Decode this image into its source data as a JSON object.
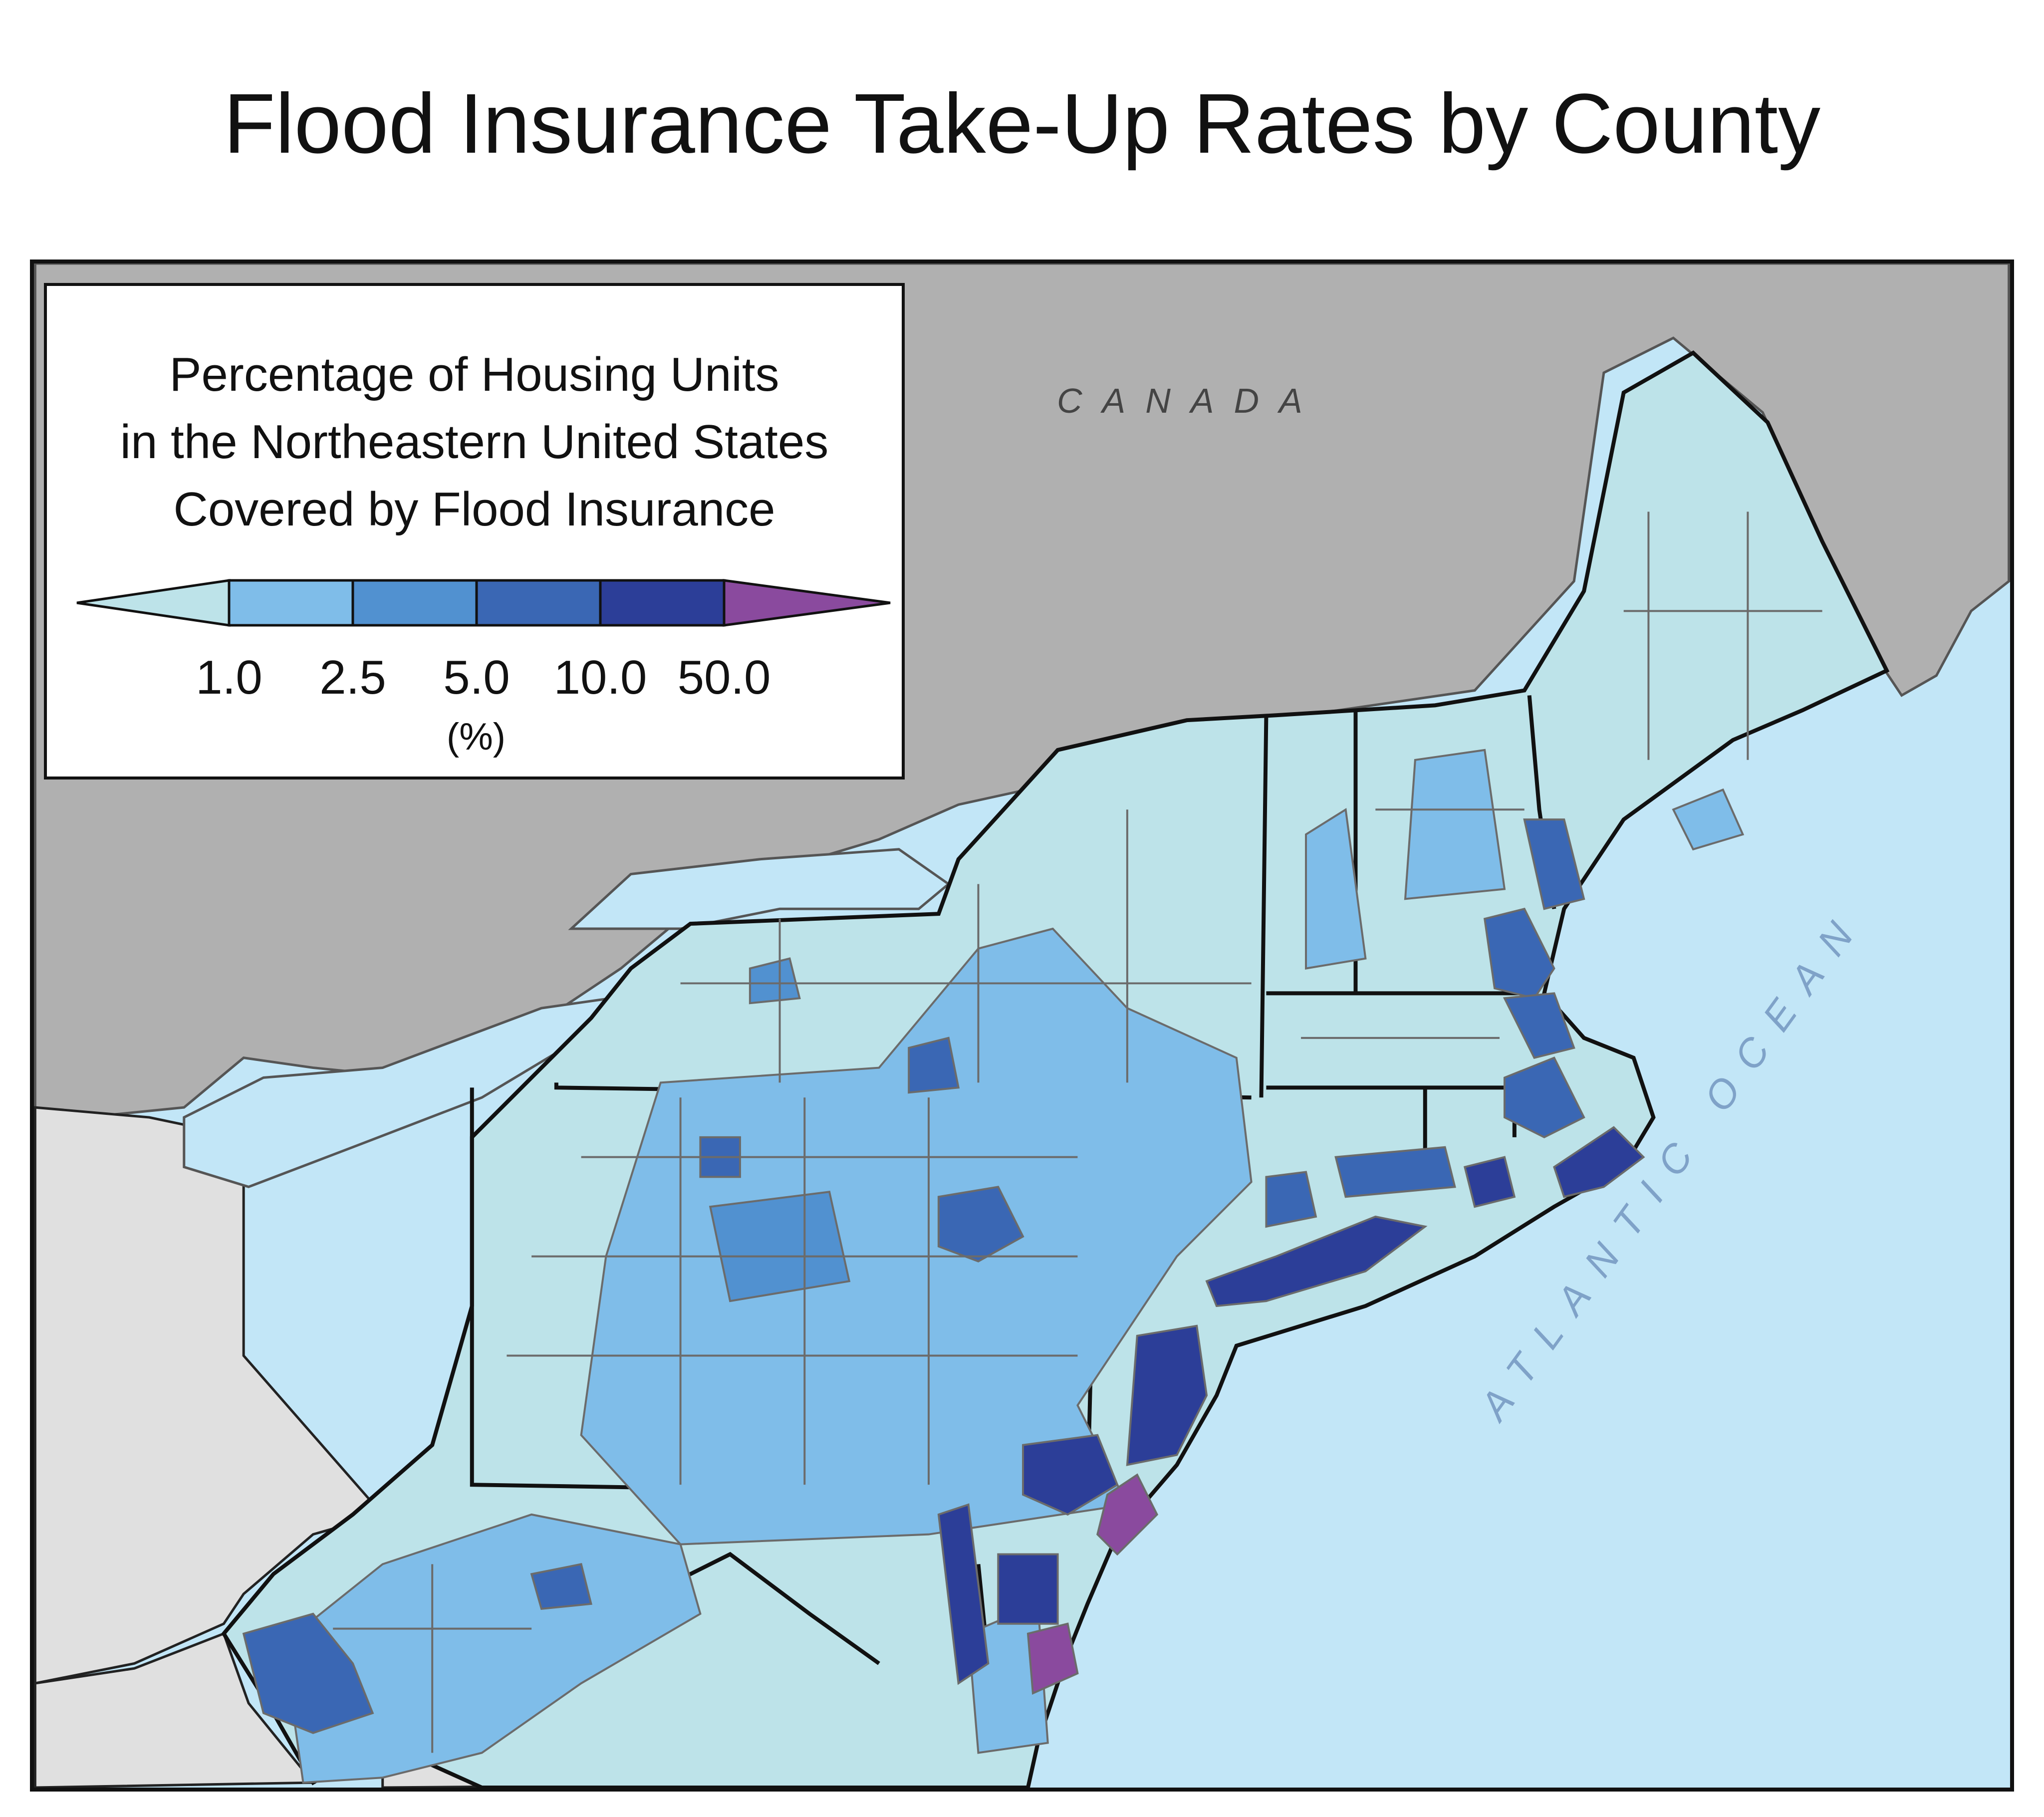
{
  "title": "Flood Insurance Take-Up Rates by County",
  "legend": {
    "title_lines": [
      "Percentage of Housing Units",
      "in the Northeastern United States",
      "Covered by Flood Insurance"
    ],
    "unit": "(%)",
    "breaks": [
      "1.0",
      "2.5",
      "5.0",
      "10.0",
      "50.0"
    ],
    "classes": [
      {
        "range": "< 1.0",
        "color": "#bde3e9"
      },
      {
        "range": "1.0–2.5",
        "color": "#7fbde9"
      },
      {
        "range": "2.5–5.0",
        "color": "#5191d0"
      },
      {
        "range": "5.0–10.0",
        "color": "#3a67b4"
      },
      {
        "range": "10.0–50.0",
        "color": "#2c3e98"
      },
      {
        "range": "> 50.0",
        "color": "#8a4a9e"
      }
    ]
  },
  "labels": {
    "canada": "CANADA",
    "ocean": "ATLANTIC OCEAN"
  },
  "colors": {
    "water": "#c2e6f7",
    "canada_land": "#b0b0b0",
    "other_us_land": "#e0e0e0",
    "state_border": "#111111",
    "county_border": "#6b6b6b"
  }
}
